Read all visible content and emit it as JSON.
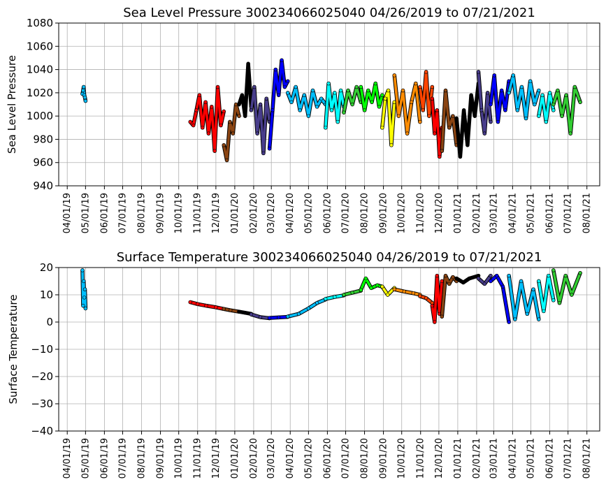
{
  "chart_data": [
    {
      "type": "scatter",
      "title": "Sea Level Pressure 300234066025040  04/26/2019 to 07/21/2021",
      "ylabel": "Sea Level Pressure",
      "xlabel": "",
      "xlim": [
        "2019-03-18",
        "2021-08-22"
      ],
      "ylim": [
        940,
        1080
      ],
      "yticks": [
        940,
        960,
        980,
        1000,
        1020,
        1040,
        1060,
        1080
      ],
      "grid": true,
      "xtick_labels": [
        "04/01/19",
        "05/01/19",
        "06/01/19",
        "07/01/19",
        "08/01/19",
        "09/01/19",
        "10/01/19",
        "11/01/19",
        "12/01/19",
        "01/01/20",
        "02/01/20",
        "03/01/20",
        "04/01/20",
        "05/01/20",
        "06/01/20",
        "07/01/20",
        "08/01/20",
        "09/01/20",
        "10/01/20",
        "11/01/20",
        "12/01/20",
        "01/01/21",
        "02/01/21",
        "03/01/21",
        "04/01/21",
        "05/01/21",
        "06/01/21",
        "07/01/21",
        "08/01/21"
      ],
      "xtick_dates": [
        "2019-04-01",
        "2019-05-01",
        "2019-06-01",
        "2019-07-01",
        "2019-08-01",
        "2019-09-01",
        "2019-10-01",
        "2019-11-01",
        "2019-12-01",
        "2020-01-01",
        "2020-02-01",
        "2020-03-01",
        "2020-04-01",
        "2020-05-01",
        "2020-06-01",
        "2020-07-01",
        "2020-08-01",
        "2020-09-01",
        "2020-10-01",
        "2020-11-01",
        "2020-12-01",
        "2021-01-01",
        "2021-02-01",
        "2021-03-01",
        "2021-04-01",
        "2021-05-01",
        "2021-06-01",
        "2021-07-01",
        "2021-08-01"
      ],
      "series": [
        {
          "color": "#00bfff",
          "x": [
            "2019-04-26",
            "2019-04-27",
            "2019-04-28",
            "2019-04-29",
            "2019-04-30",
            "2019-05-01"
          ],
          "y": [
            1019,
            1022,
            1025,
            1018,
            1016,
            1013
          ]
        },
        {
          "color": "#ff0000",
          "x": [
            "2019-10-20",
            "2019-10-25",
            "2019-10-30",
            "2019-11-04",
            "2019-11-09",
            "2019-11-14",
            "2019-11-19",
            "2019-11-24",
            "2019-11-29",
            "2019-12-04",
            "2019-12-09",
            "2019-12-14"
          ],
          "y": [
            995,
            992,
            1005,
            1018,
            990,
            1012,
            985,
            1008,
            970,
            1025,
            992,
            1004
          ]
        },
        {
          "color": "#8b4513",
          "x": [
            "2019-12-14",
            "2019-12-19",
            "2019-12-24",
            "2019-12-29",
            "2020-01-03",
            "2020-01-08"
          ],
          "y": [
            975,
            962,
            995,
            985,
            1010,
            1000
          ]
        },
        {
          "color": "#000000",
          "x": [
            "2020-01-08",
            "2020-01-13",
            "2020-01-18",
            "2020-01-23",
            "2020-01-28"
          ],
          "y": [
            1010,
            1018,
            1000,
            1045,
            1008
          ]
        },
        {
          "color": "#483d8b",
          "x": [
            "2020-01-28",
            "2020-02-02",
            "2020-02-07",
            "2020-02-12",
            "2020-02-17",
            "2020-02-22",
            "2020-02-27"
          ],
          "y": [
            1005,
            1025,
            985,
            1010,
            968,
            1015,
            995
          ]
        },
        {
          "color": "#0000ff",
          "x": [
            "2020-02-27",
            "2020-03-03",
            "2020-03-08",
            "2020-03-13",
            "2020-03-18",
            "2020-03-23",
            "2020-03-28"
          ],
          "y": [
            972,
            1005,
            1040,
            1018,
            1048,
            1025,
            1030
          ]
        },
        {
          "color": "#00bfff",
          "x": [
            "2020-03-28",
            "2020-04-03",
            "2020-04-10",
            "2020-04-17",
            "2020-04-24",
            "2020-05-01",
            "2020-05-08",
            "2020-05-15",
            "2020-05-22",
            "2020-05-29"
          ],
          "y": [
            1020,
            1012,
            1025,
            1005,
            1018,
            1000,
            1022,
            1008,
            1015,
            1010
          ]
        },
        {
          "color": "#00ffff",
          "x": [
            "2020-05-29",
            "2020-06-03",
            "2020-06-08",
            "2020-06-13",
            "2020-06-18",
            "2020-06-23",
            "2020-06-28"
          ],
          "y": [
            990,
            1028,
            1005,
            1020,
            995,
            1022,
            1008
          ]
        },
        {
          "color": "#32cd32",
          "x": [
            "2020-06-28",
            "2020-07-05",
            "2020-07-12",
            "2020-07-19",
            "2020-07-26"
          ],
          "y": [
            1003,
            1022,
            1010,
            1025,
            1012
          ]
        },
        {
          "color": "#00ff00",
          "x": [
            "2020-07-26",
            "2020-08-01",
            "2020-08-07",
            "2020-08-13",
            "2020-08-19",
            "2020-08-25",
            "2020-08-30"
          ],
          "y": [
            1025,
            1005,
            1022,
            1012,
            1028,
            1008,
            1018
          ]
        },
        {
          "color": "#ffff00",
          "x": [
            "2020-08-30",
            "2020-09-04",
            "2020-09-09",
            "2020-09-14",
            "2020-09-19"
          ],
          "y": [
            990,
            1015,
            1022,
            975,
            1012
          ]
        },
        {
          "color": "#ff8c00",
          "x": [
            "2020-09-19",
            "2020-09-26",
            "2020-10-03",
            "2020-10-10",
            "2020-10-17",
            "2020-10-24",
            "2020-10-31"
          ],
          "y": [
            1035,
            1000,
            1022,
            985,
            1012,
            1028,
            995
          ]
        },
        {
          "color": "#ff4500",
          "x": [
            "2020-10-31",
            "2020-11-05",
            "2020-11-10",
            "2020-11-15",
            "2020-11-20"
          ],
          "y": [
            1025,
            1005,
            1038,
            1000,
            1025
          ]
        },
        {
          "color": "#ff0000",
          "x": [
            "2020-11-20",
            "2020-11-24",
            "2020-11-28",
            "2020-12-02",
            "2020-12-06"
          ],
          "y": [
            1015,
            985,
            1005,
            965,
            990
          ]
        },
        {
          "color": "#8b4513",
          "x": [
            "2020-12-06",
            "2020-12-12",
            "2020-12-18",
            "2020-12-24",
            "2020-12-30"
          ],
          "y": [
            970,
            1022,
            990,
            1000,
            975
          ]
        },
        {
          "color": "#000000",
          "x": [
            "2020-12-30",
            "2021-01-05",
            "2021-01-11",
            "2021-01-17",
            "2021-01-23",
            "2021-01-29",
            "2021-02-04"
          ],
          "y": [
            998,
            965,
            1005,
            975,
            1018,
            1000,
            1028
          ]
        },
        {
          "color": "#483d8b",
          "x": [
            "2021-02-04",
            "2021-02-09",
            "2021-02-14",
            "2021-02-19",
            "2021-02-24"
          ],
          "y": [
            1038,
            1005,
            985,
            1020,
            995
          ]
        },
        {
          "color": "#0000ff",
          "x": [
            "2021-02-24",
            "2021-03-02",
            "2021-03-08",
            "2021-03-14",
            "2021-03-20",
            "2021-03-26"
          ],
          "y": [
            1010,
            1035,
            995,
            1022,
            1005,
            1030
          ]
        },
        {
          "color": "#00bfff",
          "x": [
            "2021-03-26",
            "2021-04-02",
            "2021-04-09",
            "2021-04-16",
            "2021-04-23",
            "2021-04-30",
            "2021-05-07",
            "2021-05-14"
          ],
          "y": [
            1020,
            1035,
            1005,
            1025,
            998,
            1030,
            1010,
            1022
          ]
        },
        {
          "color": "#00ffff",
          "x": [
            "2021-05-14",
            "2021-05-20",
            "2021-05-26",
            "2021-06-01",
            "2021-06-07"
          ],
          "y": [
            1000,
            1018,
            995,
            1020,
            1005
          ]
        },
        {
          "color": "#32cd32",
          "x": [
            "2021-06-07",
            "2021-06-14",
            "2021-06-21",
            "2021-06-28",
            "2021-07-05",
            "2021-07-12",
            "2021-07-21"
          ],
          "y": [
            1010,
            1022,
            1000,
            1018,
            985,
            1025,
            1012
          ]
        }
      ]
    },
    {
      "type": "scatter",
      "title": "Surface Temperature 300234066025040  04/26/2019 to 07/21/2021",
      "ylabel": "Surface Temperature",
      "xlabel": "",
      "xlim": [
        "2019-03-18",
        "2021-08-22"
      ],
      "ylim": [
        -40,
        20
      ],
      "yticks": [
        -40,
        -30,
        -20,
        -10,
        0,
        10,
        20
      ],
      "grid": true,
      "xtick_labels": [
        "04/01/19",
        "05/01/19",
        "06/01/19",
        "07/01/19",
        "08/01/19",
        "09/01/19",
        "10/01/19",
        "11/01/19",
        "12/01/19",
        "01/01/20",
        "02/01/20",
        "03/01/20",
        "04/01/20",
        "05/01/20",
        "06/01/20",
        "07/01/20",
        "08/01/20",
        "09/01/20",
        "10/01/20",
        "11/01/20",
        "12/01/20",
        "01/01/21",
        "02/01/21",
        "03/01/21",
        "04/01/21",
        "05/01/21",
        "06/01/21",
        "07/01/21",
        "08/01/21"
      ],
      "xtick_dates": [
        "2019-04-01",
        "2019-05-01",
        "2019-06-01",
        "2019-07-01",
        "2019-08-01",
        "2019-09-01",
        "2019-10-01",
        "2019-11-01",
        "2019-12-01",
        "2020-01-01",
        "2020-02-01",
        "2020-03-01",
        "2020-04-01",
        "2020-05-01",
        "2020-06-01",
        "2020-07-01",
        "2020-08-01",
        "2020-09-01",
        "2020-10-01",
        "2020-11-01",
        "2020-12-01",
        "2021-01-01",
        "2021-02-01",
        "2021-03-01",
        "2021-04-01",
        "2021-05-01",
        "2021-06-01",
        "2021-07-01",
        "2021-08-01"
      ],
      "series": [
        {
          "color": "#00bfff",
          "x": [
            "2019-04-26",
            "2019-04-27",
            "2019-04-28",
            "2019-04-29",
            "2019-04-30",
            "2019-05-01"
          ],
          "y": [
            19,
            6,
            15,
            9,
            12,
            5
          ]
        },
        {
          "color": "#ff0000",
          "x": [
            "2019-10-20",
            "2019-11-01",
            "2019-11-15",
            "2019-12-01",
            "2019-12-14"
          ],
          "y": [
            7.3,
            6.6,
            6.0,
            5.4,
            4.8
          ]
        },
        {
          "color": "#8b4513",
          "x": [
            "2019-12-14",
            "2019-12-25",
            "2020-01-08"
          ],
          "y": [
            4.8,
            4.3,
            3.8
          ]
        },
        {
          "color": "#000000",
          "x": [
            "2020-01-08",
            "2020-01-18",
            "2020-01-28"
          ],
          "y": [
            3.8,
            3.4,
            3.0
          ]
        },
        {
          "color": "#483d8b",
          "x": [
            "2020-01-28",
            "2020-02-12",
            "2020-02-27"
          ],
          "y": [
            2.8,
            1.8,
            1.4
          ]
        },
        {
          "color": "#0000ff",
          "x": [
            "2020-02-27",
            "2020-03-13",
            "2020-03-28"
          ],
          "y": [
            1.5,
            1.7,
            1.9
          ]
        },
        {
          "color": "#00bfff",
          "x": [
            "2020-03-28",
            "2020-04-15",
            "2020-05-01",
            "2020-05-15",
            "2020-05-29"
          ],
          "y": [
            2.0,
            3.0,
            5.0,
            7.0,
            8.3
          ]
        },
        {
          "color": "#00ffff",
          "x": [
            "2020-05-29",
            "2020-06-13",
            "2020-06-28"
          ],
          "y": [
            8.5,
            9.2,
            9.8
          ]
        },
        {
          "color": "#32cd32",
          "x": [
            "2020-06-28",
            "2020-07-12",
            "2020-07-26"
          ],
          "y": [
            10.0,
            10.8,
            11.5
          ]
        },
        {
          "color": "#00ff00",
          "x": [
            "2020-07-26",
            "2020-08-03",
            "2020-08-12",
            "2020-08-22",
            "2020-08-30"
          ],
          "y": [
            11.8,
            16.0,
            12.5,
            13.5,
            13.0
          ]
        },
        {
          "color": "#ffff00",
          "x": [
            "2020-08-30",
            "2020-09-08",
            "2020-09-19"
          ],
          "y": [
            13.0,
            10.0,
            12.5
          ]
        },
        {
          "color": "#ff8c00",
          "x": [
            "2020-09-19",
            "2020-10-05",
            "2020-10-20",
            "2020-10-31"
          ],
          "y": [
            12.0,
            11.2,
            10.6,
            10.0
          ]
        },
        {
          "color": "#ff4500",
          "x": [
            "2020-10-31",
            "2020-11-10",
            "2020-11-20"
          ],
          "y": [
            9.5,
            8.8,
            7.0
          ]
        },
        {
          "color": "#ff0000",
          "x": [
            "2020-11-20",
            "2020-11-24",
            "2020-11-28",
            "2020-12-02",
            "2020-12-06"
          ],
          "y": [
            6.0,
            0,
            17,
            3,
            15
          ]
        },
        {
          "color": "#8b4513",
          "x": [
            "2020-12-06",
            "2020-12-12",
            "2020-12-18",
            "2020-12-24",
            "2020-12-30"
          ],
          "y": [
            2,
            17,
            14,
            16.5,
            15
          ]
        },
        {
          "color": "#000000",
          "x": [
            "2020-12-30",
            "2021-01-10",
            "2021-01-20",
            "2021-02-04"
          ],
          "y": [
            16,
            14.5,
            16,
            17
          ]
        },
        {
          "color": "#483d8b",
          "x": [
            "2021-02-04",
            "2021-02-14",
            "2021-02-24"
          ],
          "y": [
            16,
            14,
            17
          ]
        },
        {
          "color": "#0000ff",
          "x": [
            "2021-02-24",
            "2021-03-06",
            "2021-03-16",
            "2021-03-26"
          ],
          "y": [
            15,
            17,
            13,
            0
          ]
        },
        {
          "color": "#00bfff",
          "x": [
            "2021-03-26",
            "2021-04-05",
            "2021-04-15",
            "2021-04-25",
            "2021-05-05",
            "2021-05-14"
          ],
          "y": [
            17,
            1,
            15,
            3,
            12,
            1
          ]
        },
        {
          "color": "#00ffff",
          "x": [
            "2021-05-14",
            "2021-05-22",
            "2021-05-30",
            "2021-06-07"
          ],
          "y": [
            15,
            4,
            17,
            8
          ]
        },
        {
          "color": "#32cd32",
          "x": [
            "2021-06-07",
            "2021-06-17",
            "2021-06-27",
            "2021-07-07",
            "2021-07-21"
          ],
          "y": [
            19,
            7,
            17,
            10,
            18
          ]
        }
      ]
    }
  ]
}
